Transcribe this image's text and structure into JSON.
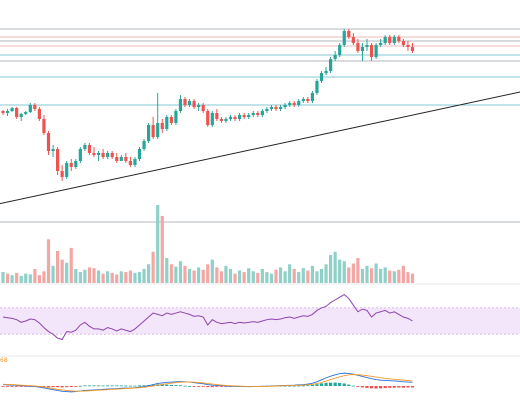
{
  "chart_data": [
    {
      "type": "candlestick",
      "title": "",
      "xlabel": "",
      "ylabel": "",
      "ylim": [
        0,
        100
      ],
      "grid": false,
      "colors": {
        "up": "#26a69a",
        "down": "#ef5350",
        "trendline": "#222222",
        "hline_blue": "#5ab4c9",
        "hline_red": "#e8a39f",
        "hline_gray": "#9aa0a6"
      },
      "horizontal_lines": [
        {
          "value": 93,
          "color": "gray"
        },
        {
          "value": 89,
          "color": "red"
        },
        {
          "value": 87,
          "color": "gray"
        },
        {
          "value": 84.5,
          "color": "red"
        },
        {
          "value": 80,
          "color": "blue"
        },
        {
          "value": 77,
          "color": "gray"
        },
        {
          "value": 69,
          "color": "blue"
        },
        {
          "value": 55,
          "color": "blue"
        }
      ],
      "trendline": {
        "from": [
          0,
          6
        ],
        "to": [
          129,
          69
        ]
      },
      "candles": [
        [
          52,
          52.5,
          50,
          51
        ],
        [
          51,
          53,
          49.5,
          52
        ],
        [
          52,
          54,
          51.5,
          53.5
        ],
        [
          53.5,
          54,
          48,
          49
        ],
        [
          49,
          51,
          47,
          50.5
        ],
        [
          50.5,
          52,
          50,
          51.5
        ],
        [
          51.5,
          56,
          51,
          55
        ],
        [
          55,
          56,
          52,
          53
        ],
        [
          53,
          54,
          47,
          48
        ],
        [
          48,
          50,
          40,
          41
        ],
        [
          41,
          42,
          30,
          32
        ],
        [
          32,
          35,
          29,
          33
        ],
        [
          33,
          34,
          20,
          22
        ],
        [
          22,
          25,
          17,
          19
        ],
        [
          19,
          27,
          18,
          26
        ],
        [
          26,
          28,
          22,
          24
        ],
        [
          24,
          28,
          23,
          27
        ],
        [
          27,
          34,
          26,
          33
        ],
        [
          33,
          36,
          32,
          35
        ],
        [
          35,
          36,
          30,
          31
        ],
        [
          31,
          34,
          29,
          30
        ],
        [
          30,
          32,
          27,
          31
        ],
        [
          31,
          33,
          28,
          29
        ],
        [
          29,
          32,
          28,
          31
        ],
        [
          31,
          32,
          28,
          29
        ],
        [
          29,
          31,
          26,
          27
        ],
        [
          27,
          30,
          27,
          29
        ],
        [
          29,
          31,
          26,
          27
        ],
        [
          27,
          29,
          24,
          25
        ],
        [
          25,
          29,
          24,
          28
        ],
        [
          28,
          34,
          27,
          33
        ],
        [
          33,
          38,
          32,
          37
        ],
        [
          37,
          46,
          36,
          45
        ],
        [
          45,
          49,
          38,
          39
        ],
        [
          39,
          61,
          38,
          46
        ],
        [
          46,
          48,
          41,
          43
        ],
        [
          43,
          50,
          42,
          49
        ],
        [
          49,
          50,
          45,
          46
        ],
        [
          46,
          53,
          45,
          52
        ],
        [
          52,
          60,
          51,
          58
        ],
        [
          58,
          59,
          54,
          55
        ],
        [
          55,
          58,
          54,
          57
        ],
        [
          57,
          58,
          53,
          54
        ],
        [
          54,
          56,
          52,
          55
        ],
        [
          55,
          56,
          51,
          52
        ],
        [
          52,
          53,
          44,
          45
        ],
        [
          45,
          52,
          44,
          51
        ],
        [
          51,
          53,
          47,
          48
        ],
        [
          48,
          49,
          46,
          47
        ],
        [
          47,
          49,
          46,
          48
        ],
        [
          48,
          50,
          47,
          49
        ],
        [
          49,
          50,
          47,
          48
        ],
        [
          48,
          51,
          47,
          50
        ],
        [
          50,
          51,
          48,
          49
        ],
        [
          49,
          51,
          48,
          50
        ],
        [
          50,
          52,
          49,
          51
        ],
        [
          51,
          52,
          49,
          50
        ],
        [
          50,
          53,
          49,
          52
        ],
        [
          52,
          54,
          51,
          53
        ],
        [
          53,
          55,
          52,
          54
        ],
        [
          54,
          55,
          52,
          53
        ],
        [
          53,
          55,
          52,
          54
        ],
        [
          54,
          56,
          53,
          55
        ],
        [
          55,
          57,
          54,
          56
        ],
        [
          56,
          57,
          54,
          55
        ],
        [
          55,
          58,
          54,
          57
        ],
        [
          57,
          59,
          56,
          58
        ],
        [
          58,
          59,
          56,
          57
        ],
        [
          57,
          62,
          56,
          61
        ],
        [
          61,
          68,
          60,
          67
        ],
        [
          67,
          72,
          66,
          71
        ],
        [
          71,
          74,
          70,
          72
        ],
        [
          72,
          79,
          71,
          78
        ],
        [
          78,
          82,
          77,
          80
        ],
        [
          80,
          86,
          79,
          85
        ],
        [
          85,
          93,
          84,
          92
        ],
        [
          92,
          93,
          88,
          89
        ],
        [
          89,
          91,
          85,
          86
        ],
        [
          86,
          88,
          81,
          82
        ],
        [
          82,
          86,
          77,
          84
        ],
        [
          84,
          88,
          82,
          85
        ],
        [
          85,
          86,
          77,
          79
        ],
        [
          79,
          86,
          78,
          85
        ],
        [
          85,
          88,
          84,
          86
        ],
        [
          86,
          90,
          85,
          89
        ],
        [
          89,
          90,
          85,
          86
        ],
        [
          86,
          90,
          85,
          89
        ],
        [
          89,
          90,
          86,
          87
        ],
        [
          87,
          88,
          84,
          85
        ],
        [
          85,
          87,
          82,
          84
        ],
        [
          84,
          86,
          81,
          82
        ]
      ]
    },
    {
      "type": "bar",
      "title": "",
      "ylim": [
        0,
        100
      ],
      "values": [
        14,
        12,
        10,
        13,
        9,
        12,
        11,
        18,
        10,
        15,
        56,
        22,
        41,
        30,
        26,
        45,
        18,
        14,
        17,
        20,
        19,
        16,
        12,
        15,
        13,
        11,
        15,
        14,
        16,
        13,
        14,
        18,
        24,
        40,
        100,
        86,
        32,
        24,
        21,
        28,
        22,
        18,
        16,
        20,
        17,
        24,
        30,
        20,
        15,
        22,
        18,
        12,
        16,
        14,
        19,
        15,
        13,
        18,
        14,
        12,
        17,
        20,
        15,
        24,
        18,
        14,
        19,
        16,
        22,
        15,
        18,
        24,
        36,
        40,
        30,
        28,
        20,
        25,
        32,
        18,
        22,
        19,
        25,
        18,
        20,
        16,
        15,
        17,
        22,
        14,
        12
      ],
      "directions": [
        "u",
        "d",
        "u",
        "d",
        "u",
        "u",
        "u",
        "d",
        "d",
        "d",
        "d",
        "u",
        "d",
        "d",
        "u",
        "d",
        "u",
        "u",
        "u",
        "d",
        "d",
        "u",
        "d",
        "u",
        "d",
        "d",
        "u",
        "d",
        "d",
        "u",
        "u",
        "u",
        "u",
        "d",
        "u",
        "d",
        "u",
        "d",
        "u",
        "u",
        "d",
        "u",
        "d",
        "u",
        "d",
        "d",
        "u",
        "d",
        "d",
        "u",
        "u",
        "d",
        "u",
        "d",
        "u",
        "u",
        "d",
        "u",
        "u",
        "u",
        "d",
        "u",
        "u",
        "u",
        "d",
        "u",
        "u",
        "d",
        "u",
        "u",
        "u",
        "u",
        "u",
        "u",
        "u",
        "u",
        "d",
        "d",
        "d",
        "u",
        "u",
        "d",
        "u",
        "u",
        "u",
        "d",
        "u",
        "d",
        "d",
        "d",
        "d"
      ]
    },
    {
      "type": "line",
      "title": "",
      "ylim": [
        0,
        100
      ],
      "band": [
        30,
        70
      ],
      "series": [
        {
          "values": [
            56,
            55,
            54,
            52,
            48,
            50,
            53,
            52,
            47,
            40,
            34,
            30,
            24,
            22,
            34,
            33,
            36,
            44,
            48,
            42,
            38,
            38,
            36,
            40,
            38,
            35,
            38,
            36,
            34,
            38,
            44,
            50,
            56,
            62,
            60,
            58,
            62,
            60,
            62,
            64,
            62,
            60,
            57,
            58,
            56,
            44,
            52,
            48,
            46,
            47,
            48,
            46,
            48,
            47,
            48,
            49,
            48,
            50,
            52,
            53,
            52,
            53,
            55,
            56,
            54,
            56,
            58,
            57,
            60,
            66,
            70,
            72,
            78,
            82,
            86,
            90,
            84,
            74,
            64,
            68,
            66,
            56,
            62,
            64,
            66,
            62,
            64,
            60,
            56,
            54,
            50
          ]
        }
      ],
      "color": "#8e44ad"
    },
    {
      "type": "macd",
      "title": "",
      "label": "68",
      "ylim": [
        -100,
        100
      ],
      "macd_line": [
        10,
        8,
        6,
        4,
        2,
        0,
        -2,
        -4,
        -8,
        -14,
        -20,
        -26,
        -32,
        -38,
        -40,
        -42,
        -40,
        -36,
        -32,
        -30,
        -28,
        -26,
        -24,
        -22,
        -20,
        -18,
        -16,
        -15,
        -14,
        -12,
        -8,
        -4,
        2,
        10,
        18,
        22,
        26,
        28,
        30,
        32,
        30,
        28,
        24,
        20,
        16,
        10,
        6,
        4,
        2,
        0,
        -2,
        -3,
        -4,
        -4,
        -5,
        -4,
        -3,
        -2,
        -1,
        0,
        2,
        3,
        4,
        5,
        6,
        8,
        10,
        14,
        20,
        30,
        44,
        58,
        70,
        80,
        88,
        92,
        90,
        84,
        76,
        68,
        60,
        52,
        46,
        42,
        40,
        38,
        36,
        34,
        30,
        28,
        26
      ],
      "signal_line": [
        12,
        11,
        10,
        8,
        6,
        4,
        2,
        0,
        -3,
        -7,
        -12,
        -18,
        -24,
        -28,
        -32,
        -35,
        -37,
        -37,
        -36,
        -34,
        -32,
        -30,
        -28,
        -26,
        -24,
        -22,
        -20,
        -18,
        -16,
        -14,
        -12,
        -9,
        -5,
        0,
        6,
        12,
        16,
        20,
        24,
        27,
        28,
        28,
        27,
        25,
        22,
        18,
        14,
        10,
        7,
        4,
        2,
        0,
        -1,
        -2,
        -3,
        -3,
        -3,
        -3,
        -2,
        -1,
        0,
        1,
        2,
        3,
        4,
        5,
        7,
        9,
        12,
        17,
        25,
        35,
        46,
        56,
        66,
        74,
        80,
        82,
        81,
        78,
        74,
        69,
        64,
        59,
        55,
        51,
        48,
        45,
        42,
        39,
        36
      ],
      "colors": {
        "macd": "#2a6fdb",
        "signal": "#f59a23",
        "hist_up": "#26a69a",
        "hist_down": "#ef5350"
      }
    }
  ]
}
